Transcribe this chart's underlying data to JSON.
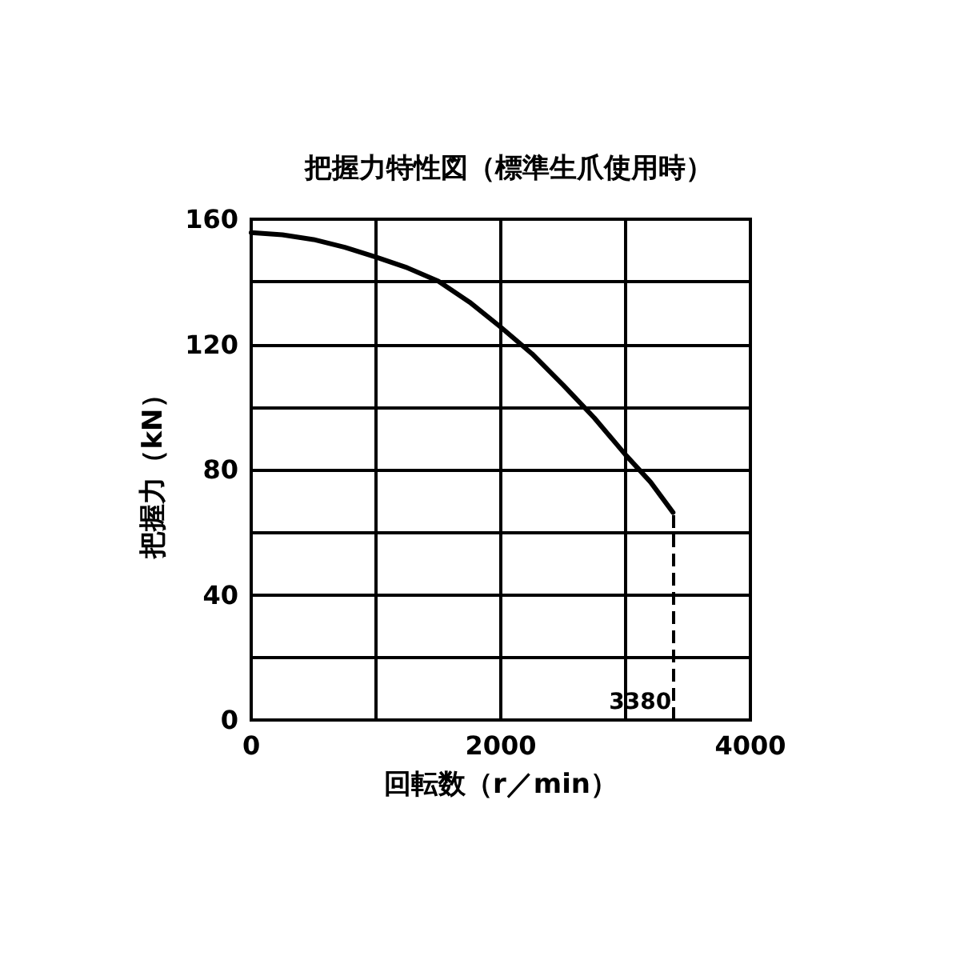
{
  "chart_data": {
    "type": "line",
    "title": "把握力特性図（標準生爪使用時）",
    "xlabel": "回転数（r／min）",
    "ylabel": "把握力（kN）",
    "x": [
      0,
      250,
      500,
      750,
      1000,
      1250,
      1500,
      1750,
      2000,
      2250,
      2500,
      2750,
      3000,
      3200,
      3380
    ],
    "series": [
      {
        "color": "#000000",
        "values": [
          155.7,
          155,
          153.5,
          151,
          147.9,
          144.5,
          140.2,
          133.5,
          125.5,
          117,
          107,
          96.5,
          84.7,
          76,
          66.3
        ]
      }
    ],
    "xlim": [
      0,
      4000
    ],
    "xticks": [
      0,
      {
        "value": 1000,
        "label": null
      },
      2000,
      {
        "value": 3000,
        "label": null
      },
      4000
    ],
    "ylim": [
      0,
      160
    ],
    "yticks": [
      0,
      {
        "value": 20,
        "label": null
      },
      40,
      {
        "value": 60,
        "label": null
      },
      80,
      {
        "value": 100,
        "label": null
      },
      120,
      {
        "value": 140,
        "label": null
      },
      160
    ],
    "ref_lines": [
      {
        "axis": "x",
        "value": 3380,
        "label": "3380",
        "color": "#000000",
        "line_style": "dashed"
      }
    ],
    "grid": true,
    "marker": "none",
    "line_style": "solid"
  }
}
